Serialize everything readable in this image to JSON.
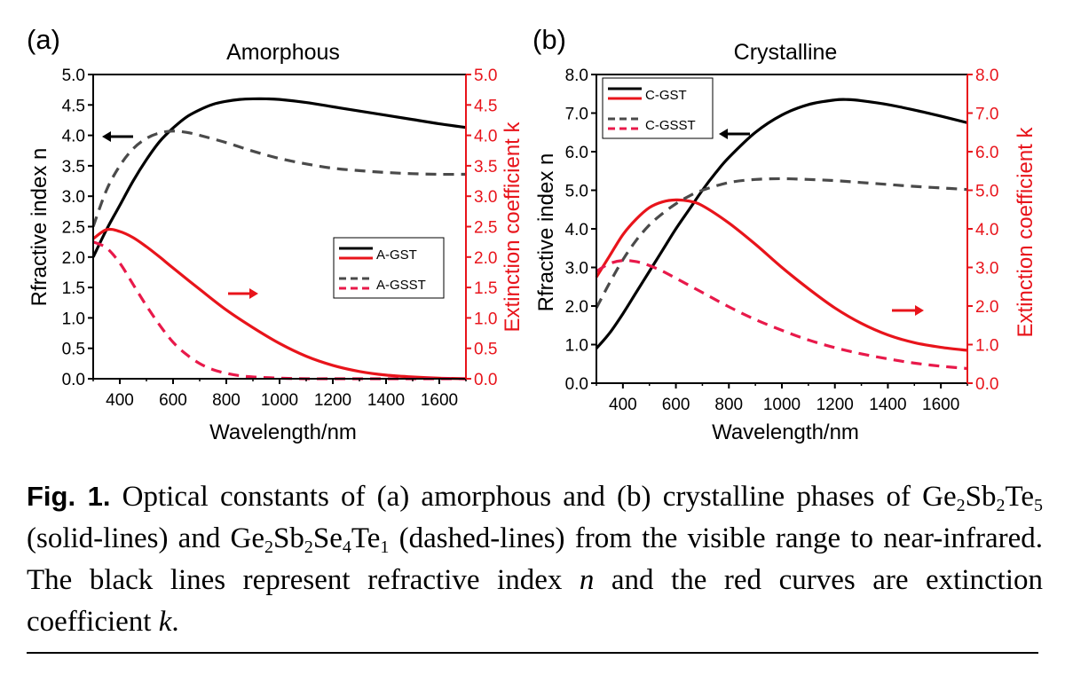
{
  "colors": {
    "n_axis": "#000000",
    "k_axis": "#e8141b",
    "k_dashed": "#e8194a",
    "n_dashed": "#4a4a4a"
  },
  "chart_data": [
    {
      "type": "line",
      "panel_label": "(a)",
      "title": "Amorphous",
      "xlabel": "Wavelength/nm",
      "ylabel_left": "Rfractive index n",
      "ylabel_right": "Extinction coefficient k",
      "xlim": [
        300,
        1700
      ],
      "ylim_left": [
        0,
        5
      ],
      "ylim_right": [
        0,
        5
      ],
      "xticks": [
        400,
        600,
        800,
        1000,
        1200,
        1400,
        1600
      ],
      "yticks_left": [
        "0.0",
        "0.5",
        "1.0",
        "1.5",
        "2.0",
        "2.5",
        "3.0",
        "3.5",
        "4.0",
        "4.5",
        "5.0"
      ],
      "yticks_right": [
        "0.0",
        "0.5",
        "1.0",
        "1.5",
        "2.0",
        "2.5",
        "3.0",
        "3.5",
        "4.0",
        "4.5",
        "5.0"
      ],
      "legend": [
        "A-GST",
        "A-GST",
        "A-GSST",
        "A-GSST"
      ],
      "legend_position": "center-right",
      "arrows": [
        {
          "direction": "left",
          "points_to": "n axis"
        },
        {
          "direction": "right",
          "points_to": "k axis"
        }
      ],
      "series": [
        {
          "name": "A-GST",
          "quantity": "n",
          "axis": "left",
          "style": "solid",
          "color": "#000000",
          "x": [
            300,
            350,
            400,
            450,
            500,
            550,
            600,
            650,
            700,
            750,
            800,
            850,
            900,
            950,
            1000,
            1100,
            1200,
            1300,
            1400,
            1500,
            1600,
            1700
          ],
          "y": [
            2.0,
            2.45,
            2.85,
            3.25,
            3.6,
            3.9,
            4.12,
            4.3,
            4.42,
            4.51,
            4.56,
            4.59,
            4.6,
            4.6,
            4.59,
            4.54,
            4.47,
            4.4,
            4.33,
            4.26,
            4.19,
            4.13
          ]
        },
        {
          "name": "A-GST",
          "quantity": "k",
          "axis": "right",
          "style": "solid",
          "color": "#e8141b",
          "x": [
            300,
            350,
            400,
            450,
            500,
            550,
            600,
            700,
            800,
            900,
            1000,
            1100,
            1200,
            1300,
            1400,
            1500,
            1600,
            1700
          ],
          "y": [
            2.3,
            2.45,
            2.42,
            2.32,
            2.17,
            2.0,
            1.82,
            1.47,
            1.13,
            0.84,
            0.58,
            0.37,
            0.22,
            0.12,
            0.06,
            0.03,
            0.01,
            0.0
          ]
        },
        {
          "name": "A-GSST",
          "quantity": "n",
          "axis": "right",
          "style": "dashed",
          "color": "#4a4a4a",
          "x": [
            300,
            350,
            400,
            450,
            500,
            550,
            600,
            650,
            700,
            800,
            900,
            1000,
            1100,
            1200,
            1300,
            1400,
            1500,
            1600,
            1700
          ],
          "y": [
            2.5,
            3.1,
            3.5,
            3.78,
            3.95,
            4.04,
            4.07,
            4.05,
            4.0,
            3.88,
            3.74,
            3.62,
            3.53,
            3.46,
            3.42,
            3.39,
            3.37,
            3.36,
            3.36
          ]
        },
        {
          "name": "A-GSST",
          "quantity": "k",
          "axis": "right",
          "style": "dashed",
          "color": "#e8194a",
          "x": [
            300,
            350,
            400,
            450,
            500,
            550,
            600,
            650,
            700,
            750,
            800,
            850,
            900,
            1000,
            1100,
            1200,
            1300,
            1400,
            1500,
            1600,
            1700
          ],
          "y": [
            2.25,
            2.15,
            1.9,
            1.55,
            1.2,
            0.88,
            0.6,
            0.4,
            0.25,
            0.15,
            0.09,
            0.05,
            0.03,
            0.01,
            0.0,
            0.0,
            0.0,
            0.0,
            0.0,
            0.0,
            0.0
          ]
        }
      ]
    },
    {
      "type": "line",
      "panel_label": "(b)",
      "title": "Crystalline",
      "xlabel": "Wavelength/nm",
      "ylabel_left": "Rfractive index n",
      "ylabel_right": "Extinction coefficient k",
      "xlim": [
        300,
        1700
      ],
      "ylim_left": [
        0,
        8
      ],
      "ylim_right": [
        0,
        8
      ],
      "xticks": [
        400,
        600,
        800,
        1000,
        1200,
        1400,
        1600
      ],
      "yticks_left": [
        "0.0",
        "1.0",
        "2.0",
        "3.0",
        "4.0",
        "5.0",
        "6.0",
        "7.0",
        "8.0"
      ],
      "yticks_right": [
        "0.0",
        "1.0",
        "2.0",
        "3.0",
        "4.0",
        "5.0",
        "6.0",
        "7.0",
        "8.0"
      ],
      "legend": [
        "C-GST",
        "C-GST",
        "C-GSST",
        "C-GSST"
      ],
      "legend_position": "top-left",
      "arrows": [
        {
          "direction": "left",
          "points_to": "n axis"
        },
        {
          "direction": "right",
          "points_to": "k axis"
        }
      ],
      "series": [
        {
          "name": "C-GST",
          "quantity": "n",
          "axis": "left",
          "style": "solid",
          "color": "#000000",
          "x": [
            300,
            350,
            400,
            450,
            500,
            550,
            600,
            650,
            700,
            750,
            800,
            900,
            1000,
            1100,
            1200,
            1250,
            1300,
            1400,
            1500,
            1600,
            1700
          ],
          "y": [
            0.9,
            1.3,
            1.8,
            2.35,
            2.9,
            3.45,
            4.0,
            4.5,
            5.0,
            5.45,
            5.85,
            6.5,
            6.95,
            7.22,
            7.34,
            7.35,
            7.32,
            7.22,
            7.08,
            6.92,
            6.75
          ]
        },
        {
          "name": "C-GST",
          "quantity": "k",
          "axis": "right",
          "style": "solid",
          "color": "#e8141b",
          "x": [
            300,
            350,
            400,
            450,
            500,
            550,
            600,
            650,
            700,
            800,
            900,
            1000,
            1100,
            1200,
            1300,
            1400,
            1500,
            1600,
            1700
          ],
          "y": [
            2.75,
            3.3,
            3.85,
            4.25,
            4.55,
            4.7,
            4.75,
            4.72,
            4.6,
            4.15,
            3.6,
            3.0,
            2.45,
            1.95,
            1.55,
            1.25,
            1.05,
            0.93,
            0.85
          ]
        },
        {
          "name": "C-GSST",
          "quantity": "n",
          "axis": "left",
          "style": "dashed",
          "color": "#4a4a4a",
          "x": [
            300,
            350,
            400,
            450,
            500,
            550,
            600,
            650,
            700,
            800,
            900,
            1000,
            1100,
            1200,
            1300,
            1400,
            1500,
            1600,
            1700
          ],
          "y": [
            1.95,
            2.6,
            3.2,
            3.7,
            4.1,
            4.4,
            4.65,
            4.85,
            5.0,
            5.2,
            5.28,
            5.3,
            5.28,
            5.25,
            5.2,
            5.15,
            5.1,
            5.06,
            5.02
          ]
        },
        {
          "name": "C-GSST",
          "quantity": "k",
          "axis": "right",
          "style": "dashed",
          "color": "#e8194a",
          "x": [
            300,
            350,
            400,
            450,
            500,
            550,
            600,
            700,
            800,
            900,
            1000,
            1100,
            1200,
            1300,
            1400,
            1500,
            1600,
            1700
          ],
          "y": [
            2.9,
            3.1,
            3.18,
            3.15,
            3.05,
            2.9,
            2.72,
            2.35,
            1.98,
            1.65,
            1.37,
            1.12,
            0.92,
            0.76,
            0.63,
            0.52,
            0.44,
            0.38
          ]
        }
      ]
    }
  ],
  "caption": {
    "fig_label": "Fig. 1.",
    "t1": " Optical constants of (a) amorphous and (b) crystalline phases of ",
    "gst_a": "Ge",
    "gst_a_sub": "2",
    "gst_b": "Sb",
    "gst_b_sub": "2",
    "gst_c": "Te",
    "gst_c_sub": "5",
    "t2": " (solid-lines) and ",
    "gsst_a": "Ge",
    "gsst_a_sub": "2",
    "gsst_b": "Sb",
    "gsst_b_sub": "2",
    "gsst_c": "Se",
    "gsst_c_sub": "4",
    "gsst_d": "Te",
    "gsst_d_sub": "1",
    "t3": " (dashed-lines) from the visible range to near-infrared. The black lines represent refractive index ",
    "n": "n",
    "t4": " and the red curves are extinction coefficient ",
    "k": "k",
    "t5": "."
  }
}
